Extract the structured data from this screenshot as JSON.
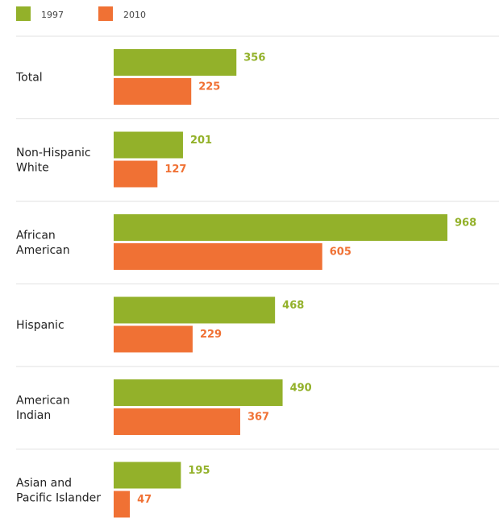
{
  "chart_data": {
    "type": "bar",
    "orientation": "horizontal",
    "categories": [
      [
        "Total"
      ],
      [
        "Non-Hispanic",
        "White"
      ],
      [
        "African",
        "American"
      ],
      [
        "Hispanic"
      ],
      [
        "American",
        "Indian"
      ],
      [
        "Asian and",
        "Pacific Islander"
      ]
    ],
    "series": [
      {
        "name": "1997",
        "color": "#93b12a",
        "values": [
          356,
          201,
          968,
          468,
          490,
          195
        ]
      },
      {
        "name": "2010",
        "color": "#f07134",
        "values": [
          225,
          127,
          605,
          229,
          367,
          47
        ]
      }
    ],
    "xlim": [
      0,
      968
    ],
    "grid": false,
    "legend": "top-left",
    "title": "",
    "xlabel": "",
    "ylabel": ""
  }
}
